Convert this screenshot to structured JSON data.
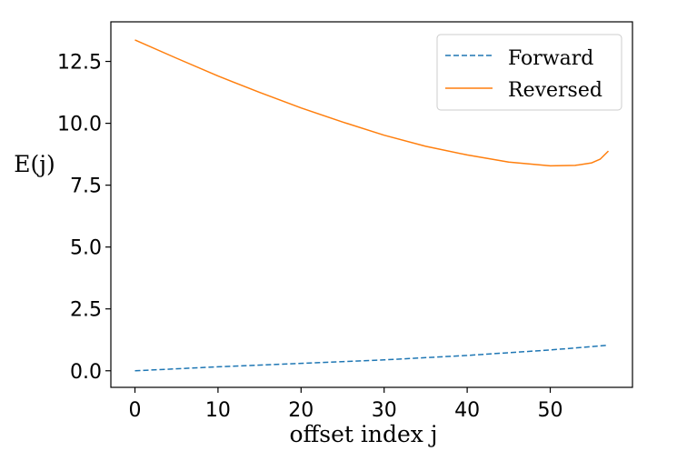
{
  "chart_data": {
    "type": "line",
    "xlabel": "offset index j",
    "ylabel": "E(j)",
    "xlim": [
      -2.9,
      59.9
    ],
    "ylim": [
      -0.67,
      14.1
    ],
    "xticks": [
      {
        "value": 0,
        "label": "0"
      },
      {
        "value": 10,
        "label": "10"
      },
      {
        "value": 20,
        "label": "20"
      },
      {
        "value": 30,
        "label": "30"
      },
      {
        "value": 40,
        "label": "40"
      },
      {
        "value": 50,
        "label": "50"
      }
    ],
    "yticks": [
      {
        "value": 0,
        "label": "0.0"
      },
      {
        "value": 2.5,
        "label": "2.5"
      },
      {
        "value": 5,
        "label": "5.0"
      },
      {
        "value": 7.5,
        "label": "7.5"
      },
      {
        "value": 10,
        "label": "10.0"
      },
      {
        "value": 12.5,
        "label": "12.5"
      }
    ],
    "grid": false,
    "legend_position": "top-right",
    "series": [
      {
        "name": "Forward",
        "color": "#1f77b4",
        "style": "dashed",
        "x": [
          0,
          10,
          20,
          30,
          40,
          50,
          57
        ],
        "y": [
          0.0,
          0.16,
          0.3,
          0.44,
          0.62,
          0.84,
          1.03
        ]
      },
      {
        "name": "Reversed",
        "color": "#ff7f0e",
        "style": "solid",
        "x": [
          0,
          5,
          10,
          15,
          20,
          25,
          30,
          35,
          40,
          45,
          50,
          53,
          55,
          56,
          57
        ],
        "y": [
          13.37,
          12.63,
          11.91,
          11.25,
          10.62,
          10.05,
          9.52,
          9.07,
          8.72,
          8.43,
          8.28,
          8.3,
          8.4,
          8.55,
          8.88
        ]
      }
    ]
  }
}
